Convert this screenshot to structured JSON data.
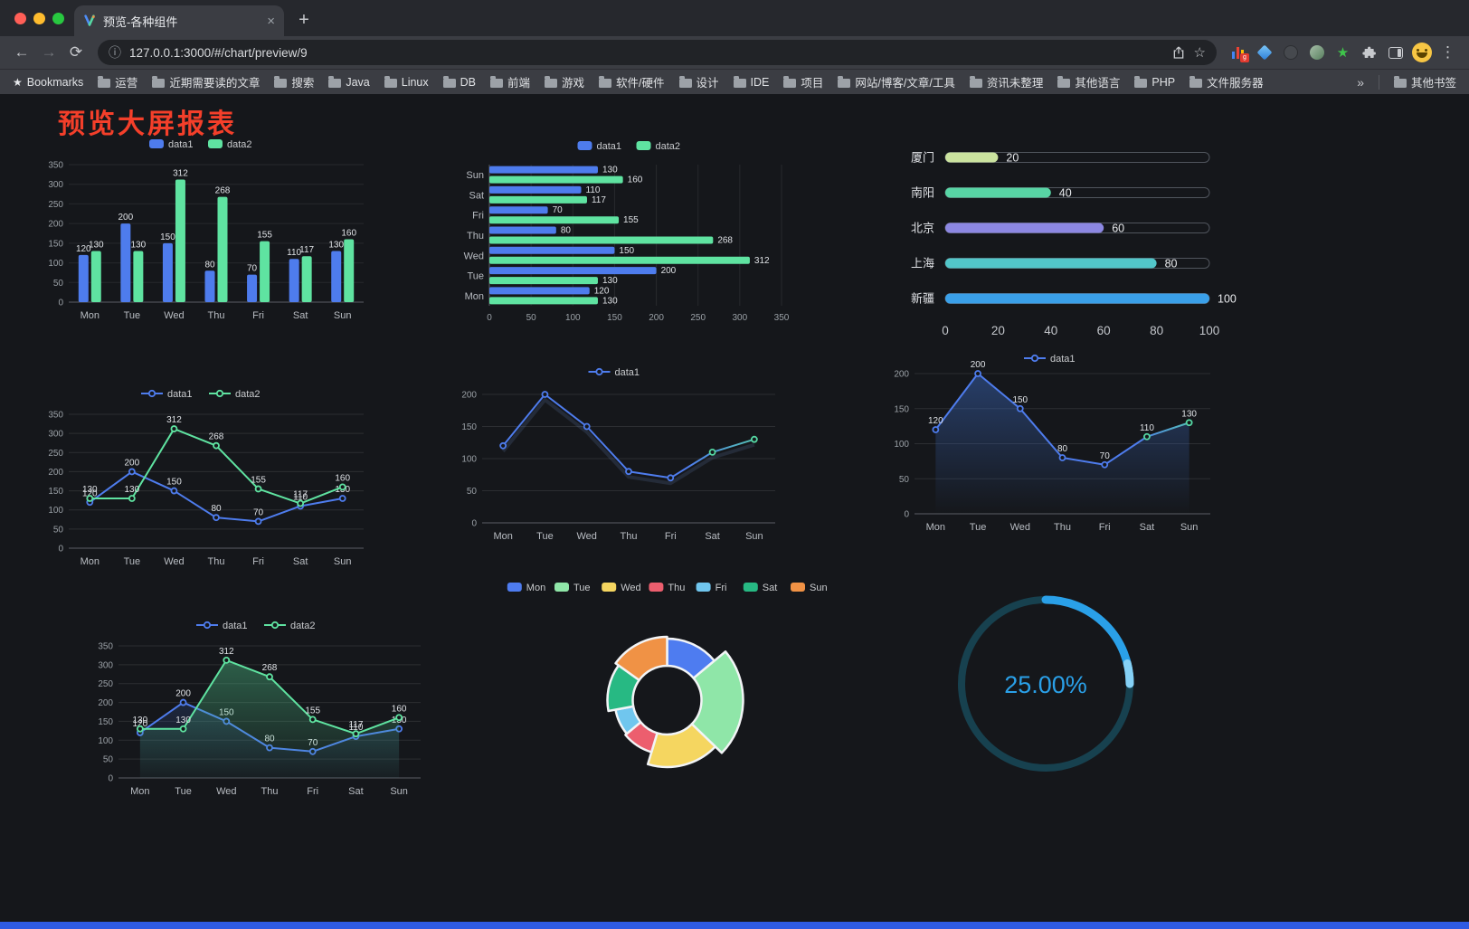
{
  "browser": {
    "tab_title": "预览-各种组件",
    "url": "127.0.0.1:3000/#/chart/preview/9",
    "icons": {
      "close_tab": "×",
      "new_tab": "+",
      "back": "←",
      "forward": "→",
      "reload": "⟳",
      "info": "ⓘ",
      "star": "☆",
      "green_star": "★",
      "menu": "⋮",
      "overflow": "»",
      "bookmarks_star": "★"
    },
    "bookmarks_label": "Bookmarks",
    "bookmarks": [
      "运营",
      "近期需要读的文章",
      "搜索",
      "Java",
      "Linux",
      "DB",
      "前端",
      "游戏",
      "软件/硬件",
      "设计",
      "IDE",
      "项目",
      "网站/博客/文章/工具",
      "资讯未整理",
      "其他语言",
      "PHP",
      "文件服务器"
    ],
    "other_bookmarks": "其他书签"
  },
  "page": {
    "title": "预览大屏报表",
    "title_color": "#f43f2a"
  },
  "chart_data": [
    {
      "type": "bar",
      "categories": [
        "Mon",
        "Tue",
        "Wed",
        "Thu",
        "Fri",
        "Sat",
        "Sun"
      ],
      "series": [
        {
          "name": "data1",
          "color": "#4e7ced",
          "values": [
            120,
            200,
            150,
            80,
            70,
            110,
            130
          ]
        },
        {
          "name": "data2",
          "color": "#5fe3a1",
          "values": [
            130,
            130,
            312,
            268,
            155,
            117,
            160
          ]
        }
      ],
      "ylim": [
        0,
        350
      ],
      "yticks": [
        0,
        50,
        100,
        150,
        200,
        250,
        300,
        350
      ]
    },
    {
      "type": "hbar",
      "categories": [
        "Mon",
        "Tue",
        "Wed",
        "Thu",
        "Fri",
        "Sat",
        "Sun"
      ],
      "series": [
        {
          "name": "data1",
          "color": "#4e7ced",
          "values": [
            120,
            200,
            150,
            80,
            70,
            110,
            130
          ]
        },
        {
          "name": "data2",
          "color": "#5fe3a1",
          "values": [
            130,
            130,
            312,
            268,
            155,
            117,
            160
          ]
        }
      ],
      "xlim": [
        0,
        350
      ],
      "xticks": [
        0,
        50,
        100,
        150,
        200,
        250,
        300,
        350
      ]
    },
    {
      "type": "capsule",
      "categories": [
        "厦门",
        "南阳",
        "北京",
        "上海",
        "新疆"
      ],
      "values": [
        20,
        40,
        60,
        80,
        100
      ],
      "colors": [
        "#cbe39f",
        "#58d5a5",
        "#8c87e2",
        "#52c6c9",
        "#3aa0e9"
      ],
      "max": 100,
      "xticks": [
        0,
        20,
        40,
        60,
        80,
        100
      ]
    },
    {
      "type": "line",
      "categories": [
        "Mon",
        "Tue",
        "Wed",
        "Thu",
        "Fri",
        "Sat",
        "Sun"
      ],
      "series": [
        {
          "name": "data1",
          "color": "#4e7ced",
          "values": [
            120,
            200,
            150,
            80,
            70,
            110,
            130
          ],
          "labels": true
        },
        {
          "name": "data2",
          "color": "#5fe3a1",
          "values": [
            130,
            130,
            312,
            268,
            155,
            117,
            160
          ],
          "labels": true
        }
      ],
      "ylim": [
        0,
        350
      ],
      "yticks": [
        0,
        50,
        100,
        150,
        200,
        250,
        300,
        350
      ]
    },
    {
      "type": "line",
      "categories": [
        "Mon",
        "Tue",
        "Wed",
        "Thu",
        "Fri",
        "Sat",
        "Sun"
      ],
      "series": [
        {
          "name": "data1",
          "color": "#4e7ced",
          "colorStops": [
            [
              0,
              "#4e7ced"
            ],
            [
              0.7,
              "#4e7ced"
            ],
            [
              1,
              "#55d7a3"
            ]
          ],
          "values": [
            120,
            200,
            150,
            80,
            70,
            110,
            130
          ],
          "shadow": true
        }
      ],
      "ylim": [
        0,
        200
      ],
      "yticks": [
        0,
        50,
        100,
        150,
        200
      ]
    },
    {
      "type": "line",
      "categories": [
        "Mon",
        "Tue",
        "Wed",
        "Thu",
        "Fri",
        "Sat",
        "Sun"
      ],
      "series": [
        {
          "name": "data1",
          "color": "#4e7ced",
          "colorStops": [
            [
              0,
              "#4e7ced"
            ],
            [
              0.75,
              "#4e7ced"
            ],
            [
              1,
              "#55d7a3"
            ]
          ],
          "values": [
            120,
            200,
            150,
            80,
            70,
            110,
            130
          ],
          "labels": true,
          "area": {
            "from": "rgba(62,110,200,0.45)",
            "to": "rgba(62,110,200,0)"
          }
        }
      ],
      "ylim": [
        0,
        200
      ],
      "yticks": [
        0,
        50,
        100,
        150,
        200
      ]
    },
    {
      "type": "line",
      "categories": [
        "Mon",
        "Tue",
        "Wed",
        "Thu",
        "Fri",
        "Sat",
        "Sun"
      ],
      "series": [
        {
          "name": "data1",
          "color": "#4e7ced",
          "values": [
            120,
            200,
            150,
            80,
            70,
            110,
            130
          ],
          "labels": true,
          "area": {
            "from": "rgba(60,100,190,0.35)",
            "to": "rgba(60,100,190,0.02)"
          }
        },
        {
          "name": "data2",
          "color": "#5fe3a1",
          "values": [
            130,
            130,
            312,
            268,
            155,
            117,
            160
          ],
          "labels": true,
          "area": {
            "from": "rgba(80,200,140,0.45)",
            "to": "rgba(80,200,140,0.03)"
          }
        }
      ],
      "ylim": [
        0,
        350
      ],
      "yticks": [
        0,
        50,
        100,
        150,
        200,
        250,
        300,
        350
      ]
    },
    {
      "type": "rose",
      "categories": [
        "Mon",
        "Tue",
        "Wed",
        "Thu",
        "Fri",
        "Sat",
        "Sun"
      ],
      "values": [
        120,
        200,
        150,
        80,
        70,
        110,
        130
      ],
      "colors": [
        "#4e7cf0",
        "#8fe6a8",
        "#f5d660",
        "#ec5e6e",
        "#70c6ee",
        "#27b983",
        "#f09245"
      ]
    },
    {
      "type": "gauge",
      "label": "25.00%",
      "percent": 25,
      "color": "#2aa0e8",
      "track": "#17414f"
    }
  ]
}
